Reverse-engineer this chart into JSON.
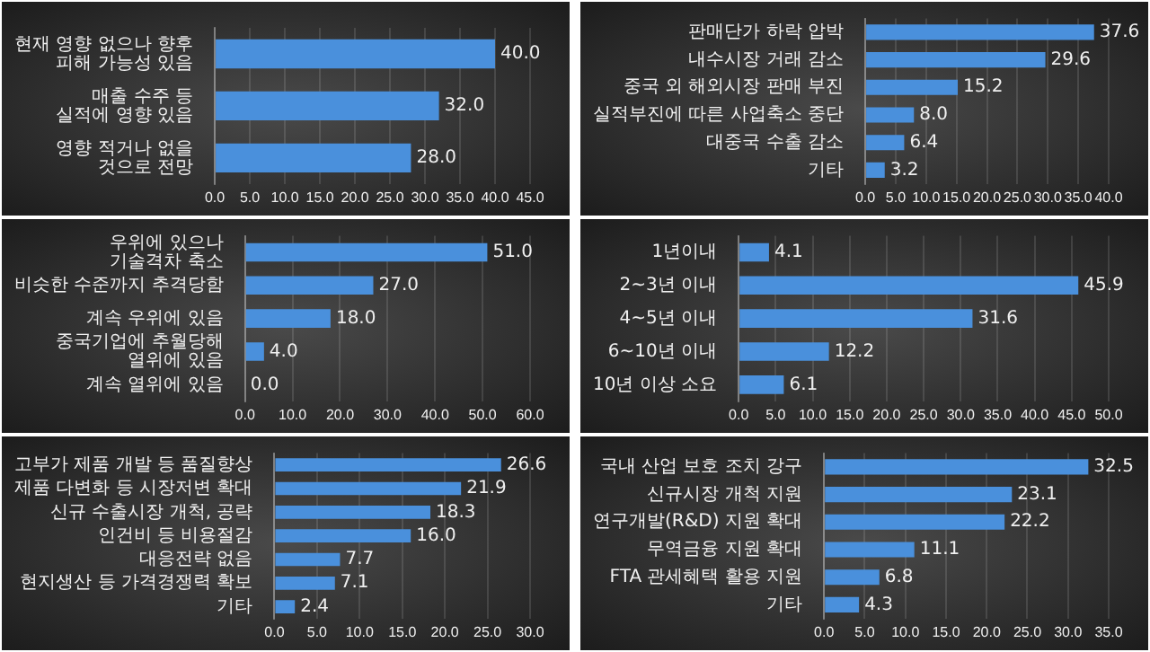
{
  "chart_data": [
    {
      "type": "bar",
      "orientation": "horizontal",
      "categories": [
        "현재 영향 없으나 향후 피해 가능성 있음",
        "매출 수주 등 실적에 영향 있음",
        "영향 적거나 없을 것으로 전망"
      ],
      "values": [
        40.0,
        32.0,
        28.0
      ],
      "value_labels": [
        "40.0",
        "32.0",
        "28.0"
      ],
      "color": "#4a90dc",
      "xlim": [
        0,
        45
      ],
      "xticks": [
        {
          "value": 0,
          "label": "0.0"
        },
        {
          "value": 5,
          "label": "5.0"
        },
        {
          "value": 10,
          "label": "10.0"
        },
        {
          "value": 15,
          "label": "15.0"
        },
        {
          "value": 20,
          "label": "20.0"
        },
        {
          "value": 25,
          "label": "25.0"
        },
        {
          "value": 30,
          "label": "30.0"
        },
        {
          "value": 35,
          "label": "35.0"
        },
        {
          "value": 40,
          "label": "40.0"
        },
        {
          "value": 45,
          "label": "45.0"
        }
      ],
      "grid": "x",
      "legend": false
    },
    {
      "type": "bar",
      "orientation": "horizontal",
      "categories": [
        "판매단가 하락 압박",
        "내수시장 거래 감소",
        "중국 외 해외시장 판매 부진",
        "실적부진에 따른 사업축소 중단",
        "대중국 수출 감소",
        "기타"
      ],
      "values": [
        37.6,
        29.6,
        15.2,
        8.0,
        6.4,
        3.2
      ],
      "value_labels": [
        "37.6",
        "29.6",
        "15.2",
        "8.0",
        "6.4",
        "3.2"
      ],
      "color": "#4a90dc",
      "xlim": [
        0,
        40
      ],
      "xticks": [
        {
          "value": 0,
          "label": "0.0"
        },
        {
          "value": 5,
          "label": "5.0"
        },
        {
          "value": 10,
          "label": "10.0"
        },
        {
          "value": 15,
          "label": "15.0"
        },
        {
          "value": 20,
          "label": "20.0"
        },
        {
          "value": 25,
          "label": "25.0"
        },
        {
          "value": 30,
          "label": "30.0"
        },
        {
          "value": 35,
          "label": "35.0"
        },
        {
          "value": 40,
          "label": "40.0"
        }
      ],
      "grid": "x",
      "legend": false
    },
    {
      "type": "bar",
      "orientation": "horizontal",
      "categories": [
        "우위에 있으나 기술격차 축소",
        "비슷한 수준까지 추격당함",
        "계속 우위에 있음",
        "중국기업에 추월당해 열위에 있음",
        "계속 열위에 있음"
      ],
      "values": [
        51.0,
        27.0,
        18.0,
        4.0,
        0.0
      ],
      "value_labels": [
        "51.0",
        "27.0",
        "18.0",
        "4.0",
        "0.0"
      ],
      "color": "#4a90dc",
      "xlim": [
        0,
        60
      ],
      "xticks": [
        {
          "value": 0,
          "label": "0.0"
        },
        {
          "value": 10,
          "label": "10.0"
        },
        {
          "value": 20,
          "label": "20.0"
        },
        {
          "value": 30,
          "label": "30.0"
        },
        {
          "value": 40,
          "label": "40.0"
        },
        {
          "value": 50,
          "label": "50.0"
        },
        {
          "value": 60,
          "label": "60.0"
        }
      ],
      "grid": "x",
      "legend": false
    },
    {
      "type": "bar",
      "orientation": "horizontal",
      "categories": [
        "1년이내",
        "2~3년 이내",
        "4~5년 이내",
        "6~10년 이내",
        "10년 이상 소요"
      ],
      "values": [
        4.1,
        45.9,
        31.6,
        12.2,
        6.1
      ],
      "value_labels": [
        "4.1",
        "45.9",
        "31.6",
        "12.2",
        "6.1"
      ],
      "color": "#4a90dc",
      "xlim": [
        0,
        50
      ],
      "xticks": [
        {
          "value": 0,
          "label": "0.0"
        },
        {
          "value": 5,
          "label": "5.0"
        },
        {
          "value": 10,
          "label": "10.0"
        },
        {
          "value": 15,
          "label": "15.0"
        },
        {
          "value": 20,
          "label": "20.0"
        },
        {
          "value": 25,
          "label": "25.0"
        },
        {
          "value": 30,
          "label": "30.0"
        },
        {
          "value": 35,
          "label": "35.0"
        },
        {
          "value": 40,
          "label": "40.0"
        },
        {
          "value": 45,
          "label": "45.0"
        },
        {
          "value": 50,
          "label": "50.0"
        }
      ],
      "grid": "x",
      "legend": false
    },
    {
      "type": "bar",
      "orientation": "horizontal",
      "categories": [
        "고부가 제품 개발 등 품질향상",
        "제품 다변화 등 시장저변 확대",
        "신규 수출시장 개척, 공략",
        "인건비 등 비용절감",
        "대응전략 없음",
        "현지생산 등 가격경쟁력 확보",
        "기타"
      ],
      "values": [
        26.6,
        21.9,
        18.3,
        16.0,
        7.7,
        7.1,
        2.4
      ],
      "value_labels": [
        "26.6",
        "21.9",
        "18.3",
        "16.0",
        "7.7",
        "7.1",
        "2.4"
      ],
      "color": "#4a90dc",
      "xlim": [
        0,
        30
      ],
      "xticks": [
        {
          "value": 0,
          "label": "0.0"
        },
        {
          "value": 5,
          "label": "5.0"
        },
        {
          "value": 10,
          "label": "10.0"
        },
        {
          "value": 15,
          "label": "15.0"
        },
        {
          "value": 20,
          "label": "20.0"
        },
        {
          "value": 25,
          "label": "25.0"
        },
        {
          "value": 30,
          "label": "30.0"
        }
      ],
      "grid": "x",
      "legend": false
    },
    {
      "type": "bar",
      "orientation": "horizontal",
      "categories": [
        "국내 산업 보호 조치 강구",
        "신규시장 개척 지원",
        "연구개발(R&D) 지원 확대",
        "무역금융 지원 확대",
        "FTA 관세혜택 활용 지원",
        "기타"
      ],
      "values": [
        32.5,
        23.1,
        22.2,
        11.1,
        6.8,
        4.3
      ],
      "value_labels": [
        "32.5",
        "23.1",
        "22.2",
        "11.1",
        "6.8",
        "4.3"
      ],
      "color": "#4a90dc",
      "xlim": [
        0,
        35
      ],
      "xticks": [
        {
          "value": 0,
          "label": "0.0"
        },
        {
          "value": 5,
          "label": "5.0"
        },
        {
          "value": 10,
          "label": "10.0"
        },
        {
          "value": 15,
          "label": "15.0"
        },
        {
          "value": 20,
          "label": "20.0"
        },
        {
          "value": 25,
          "label": "25.0"
        },
        {
          "value": 30,
          "label": "30.0"
        },
        {
          "value": 35,
          "label": "35.0"
        }
      ],
      "grid": "x",
      "legend": false
    }
  ]
}
